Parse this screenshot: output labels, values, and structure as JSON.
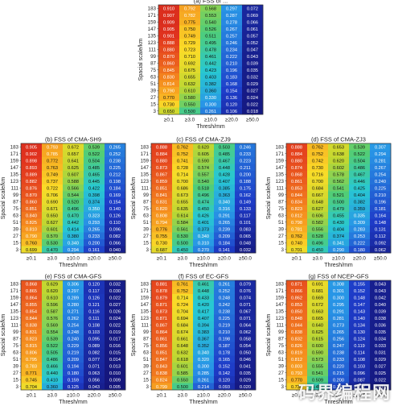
{
  "figure": {
    "watermark": "码界编程网"
  },
  "chart_data": [
    {
      "type": "heatmap",
      "title": "(a) FSS of ...",
      "xlabel": "Thresh/mm",
      "ylabel": "Spacial scale/km",
      "x": [
        "≥0.1",
        "≥3.0",
        "≥10.0",
        "≥20.0",
        "≥50.0"
      ],
      "y": [
        "183",
        "171",
        "159",
        "147",
        "135",
        "123",
        "111",
        "99",
        "87",
        "75",
        "63",
        "51",
        "39",
        "27",
        "15",
        "3"
      ],
      "values": [
        [
          0.91,
          0.792,
          0.568,
          0.297,
          0.072
        ],
        [
          0.907,
          0.782,
          0.553,
          0.287,
          0.069
        ],
        [
          0.909,
          0.775,
          0.54,
          0.278,
          0.066
        ],
        [
          0.905,
          0.75,
          0.526,
          0.267,
          0.061
        ],
        [
          0.901,
          0.749,
          0.511,
          0.257,
          0.057
        ],
        [
          0.888,
          0.729,
          0.495,
          0.246,
          0.052
        ],
        [
          0.88,
          0.723,
          0.478,
          0.234,
          0.047
        ],
        [
          0.87,
          0.71,
          0.461,
          0.222,
          0.043
        ],
        [
          0.86,
          0.692,
          0.442,
          0.21,
          0.039
        ],
        [
          0.845,
          0.675,
          0.423,
          0.196,
          0.035
        ],
        [
          0.83,
          0.655,
          0.403,
          0.183,
          0.032
        ],
        [
          0.814,
          0.632,
          0.382,
          0.168,
          0.029
        ],
        [
          0.79,
          0.61,
          0.36,
          0.154,
          0.027
        ],
        [
          0.77,
          0.58,
          0.33,
          0.136,
          0.024
        ],
        [
          0.73,
          0.55,
          0.3,
          0.12,
          0.022
        ],
        [
          0.65,
          0.5,
          0.261,
          0.106,
          0.018
        ]
      ]
    },
    {
      "type": "heatmap",
      "title": "(b) FSS of CMA-SH9",
      "xlabel": "Thresh/mm",
      "ylabel": "Spacial scale/km",
      "x": [
        "≥0.1",
        "≥3.0",
        "≥10.0",
        "≥20.0",
        "≥50.0"
      ],
      "y": [
        "183",
        "171",
        "159",
        "147",
        "135",
        "123",
        "111",
        "99",
        "87",
        "75",
        "63",
        "51",
        "39",
        "27",
        "15",
        "3"
      ],
      "values": [
        [
          0.905,
          0.793,
          0.672,
          0.539,
          0.265
        ],
        [
          0.902,
          0.785,
          0.657,
          0.522,
          0.252
        ],
        [
          0.898,
          0.772,
          0.641,
          0.504,
          0.238
        ],
        [
          0.893,
          0.763,
          0.625,
          0.485,
          0.225
        ],
        [
          0.889,
          0.749,
          0.607,
          0.465,
          0.212
        ],
        [
          0.882,
          0.737,
          0.588,
          0.445,
          0.198
        ],
        [
          0.876,
          0.722,
          0.566,
          0.422,
          0.184
        ],
        [
          0.87,
          0.706,
          0.544,
          0.398,
          0.169
        ],
        [
          0.86,
          0.69,
          0.52,
          0.374,
          0.154
        ],
        [
          0.851,
          0.671,
          0.496,
          0.35,
          0.14
        ],
        [
          0.84,
          0.65,
          0.47,
          0.323,
          0.126
        ],
        [
          0.825,
          0.627,
          0.442,
          0.293,
          0.11
        ],
        [
          0.81,
          0.601,
          0.414,
          0.265,
          0.096
        ],
        [
          0.79,
          0.57,
          0.38,
          0.233,
          0.082
        ],
        [
          0.76,
          0.53,
          0.34,
          0.2,
          0.066
        ],
        [
          0.699,
          0.47,
          0.294,
          0.161,
          0.04
        ]
      ]
    },
    {
      "type": "heatmap",
      "title": "(c) FSS of CMA-ZJ9",
      "xlabel": "Thresh/mm",
      "ylabel": "Spacial scale/km",
      "x": [
        "≥0.1",
        "≥3.0",
        "≥10.0",
        "≥20.0",
        "≥50.0"
      ],
      "y": [
        "183",
        "171",
        "159",
        "147",
        "135",
        "123",
        "111",
        "99",
        "87",
        "75",
        "63",
        "51",
        "39",
        "27",
        "15",
        "3"
      ],
      "values": [
        [
          0.888,
          0.762,
          0.62,
          0.503,
          0.246
        ],
        [
          0.884,
          0.752,
          0.605,
          0.485,
          0.233
        ],
        [
          0.88,
          0.741,
          0.59,
          0.467,
          0.223
        ],
        [
          0.873,
          0.728,
          0.574,
          0.448,
          0.211
        ],
        [
          0.867,
          0.714,
          0.557,
          0.428,
          0.2
        ],
        [
          0.859,
          0.7,
          0.54,
          0.407,
          0.188
        ],
        [
          0.851,
          0.686,
          0.518,
          0.385,
          0.175
        ],
        [
          0.841,
          0.673,
          0.496,
          0.363,
          0.162
        ],
        [
          0.831,
          0.655,
          0.474,
          0.34,
          0.149
        ],
        [
          0.82,
          0.635,
          0.45,
          0.316,
          0.133
        ],
        [
          0.808,
          0.614,
          0.426,
          0.291,
          0.117
        ],
        [
          0.794,
          0.584,
          0.401,
          0.265,
          0.101
        ],
        [
          0.776,
          0.561,
          0.373,
          0.239,
          0.083
        ],
        [
          0.755,
          0.53,
          0.34,
          0.209,
          0.065
        ],
        [
          0.73,
          0.5,
          0.31,
          0.184,
          0.048
        ],
        [
          0.687,
          0.45,
          0.27,
          0.141,
          0.032
        ]
      ]
    },
    {
      "type": "heatmap",
      "title": "(d) FSS of CMA-ZJ3",
      "xlabel": "Thresh/mm",
      "ylabel": "Spacial scale/km",
      "x": [
        "≥0.1",
        "≥3.0",
        "≥10.0",
        "≥20.0",
        "≥50.0"
      ],
      "y": [
        "183",
        "171",
        "159",
        "147",
        "135",
        "123",
        "111",
        "99",
        "87",
        "75",
        "63",
        "51",
        "39",
        "27",
        "15",
        "3"
      ],
      "values": [
        [
          0.888,
          0.762,
          0.653,
          0.539,
          0.307
        ],
        [
          0.884,
          0.752,
          0.638,
          0.522,
          0.294
        ],
        [
          0.88,
          0.742,
          0.62,
          0.504,
          0.281
        ],
        [
          0.874,
          0.73,
          0.602,
          0.486,
          0.267
        ],
        [
          0.868,
          0.716,
          0.578,
          0.467,
          0.254
        ],
        [
          0.861,
          0.7,
          0.562,
          0.446,
          0.24
        ],
        [
          0.853,
          0.684,
          0.541,
          0.425,
          0.225
        ],
        [
          0.844,
          0.667,
          0.521,
          0.404,
          0.21
        ],
        [
          0.834,
          0.648,
          0.5,
          0.382,
          0.196
        ],
        [
          0.823,
          0.627,
          0.479,
          0.359,
          0.181
        ],
        [
          0.812,
          0.606,
          0.455,
          0.335,
          0.164
        ],
        [
          0.798,
          0.582,
          0.43,
          0.309,
          0.148
        ],
        [
          0.781,
          0.556,
          0.404,
          0.283,
          0.131
        ],
        [
          0.762,
          0.528,
          0.374,
          0.253,
          0.112
        ],
        [
          0.74,
          0.496,
          0.341,
          0.222,
          0.092
        ],
        [
          0.701,
          0.45,
          0.29,
          0.18,
          0.062
        ]
      ]
    },
    {
      "type": "heatmap",
      "title": "(e) FSS of CMA-GFS",
      "xlabel": "Thresh/mm",
      "ylabel": "Spacial scale/km",
      "x": [
        "≥0.1",
        "≥3.0",
        "≥10.0",
        "≥20.0",
        "≥50.0"
      ],
      "y": [
        "183",
        "171",
        "159",
        "147",
        "135",
        "123",
        "111",
        "99",
        "87",
        "75",
        "63",
        "51",
        "39",
        "27",
        "15",
        "3"
      ],
      "values": [
        [
          0.868,
          0.629,
          0.306,
          0.12,
          0.032
        ],
        [
          0.865,
          0.62,
          0.297,
          0.117,
          0.03
        ],
        [
          0.864,
          0.61,
          0.289,
          0.126,
          0.022
        ],
        [
          0.855,
          0.596,
          0.28,
          0.121,
          0.027
        ],
        [
          0.854,
          0.587,
          0.271,
          0.116,
          0.026
        ],
        [
          0.844,
          0.576,
          0.262,
          0.111,
          0.024
        ],
        [
          0.838,
          0.569,
          0.254,
          0.108,
          0.022
        ],
        [
          0.831,
          0.554,
          0.248,
          0.103,
          0.019
        ],
        [
          0.823,
          0.539,
          0.24,
          0.095,
          0.017
        ],
        [
          0.815,
          0.522,
          0.229,
          0.089,
          0.016
        ],
        [
          0.806,
          0.505,
          0.219,
          0.082,
          0.015
        ],
        [
          0.795,
          0.486,
          0.209,
          0.077,
          0.014
        ],
        [
          0.783,
          0.466,
          0.194,
          0.071,
          0.013
        ],
        [
          0.771,
          0.44,
          0.18,
          0.063,
          0.01
        ],
        [
          0.745,
          0.41,
          0.159,
          0.056,
          0.009
        ],
        [
          0.704,
          0.36,
          0.125,
          0.043,
          0.005
        ]
      ]
    },
    {
      "type": "heatmap",
      "title": "(f) FSS of EC-GFS",
      "xlabel": "Thresh/mm",
      "ylabel": "Spacial scale/km",
      "x": [
        "≥0.1",
        "≥3.0",
        "≥10.0",
        "≥20.0",
        "≥50.0"
      ],
      "y": [
        "183",
        "171",
        "159",
        "147",
        "135",
        "123",
        "111",
        "99",
        "87",
        "75",
        "63",
        "51",
        "39",
        "27",
        "15",
        "3"
      ],
      "values": [
        [
          0.881,
          0.761,
          0.461,
          0.261,
          0.079
        ],
        [
          0.878,
          0.752,
          0.448,
          0.252,
          0.076
        ],
        [
          0.879,
          0.714,
          0.433,
          0.248,
          0.074
        ],
        [
          0.871,
          0.724,
          0.42,
          0.242,
          0.071
        ],
        [
          0.873,
          0.704,
          0.417,
          0.238,
          0.067
        ],
        [
          0.871,
          0.694,
          0.407,
          0.225,
          0.071
        ],
        [
          0.867,
          0.684,
          0.394,
          0.219,
          0.064
        ],
        [
          0.864,
          0.674,
          0.383,
          0.21,
          0.062
        ],
        [
          0.861,
          0.661,
          0.367,
          0.198,
          0.058
        ],
        [
          0.856,
          0.648,
          0.352,
          0.187,
          0.054
        ],
        [
          0.851,
          0.632,
          0.34,
          0.178,
          0.05
        ],
        [
          0.847,
          0.618,
          0.32,
          0.165,
          0.046
        ],
        [
          0.843,
          0.601,
          0.3,
          0.152,
          0.041
        ],
        [
          0.838,
          0.585,
          0.285,
          0.142,
          0.035
        ],
        [
          0.824,
          0.55,
          0.261,
          0.12,
          0.029
        ],
        [
          0.799,
          0.5,
          0.214,
          0.093,
          0.02
        ]
      ]
    },
    {
      "type": "heatmap",
      "title": "(g) FSS of NCEP-GFS",
      "xlabel": "Thresh/mm",
      "ylabel": "Spacial scale/km",
      "x": [
        "≥0.1",
        "≥3.0",
        "≥10.0",
        "≥20.0",
        "≥50.0"
      ],
      "y": [
        "183",
        "171",
        "159",
        "147",
        "135",
        "123",
        "111",
        "99",
        "87",
        "75",
        "63",
        "51",
        "39",
        "27",
        "15",
        "3"
      ],
      "values": [
        [
          0.871,
          0.691,
          0.308,
          0.155,
          0.043
        ],
        [
          0.866,
          0.681,
          0.301,
          0.152,
          0.043
        ],
        [
          0.862,
          0.669,
          0.3,
          0.148,
          0.042
        ],
        [
          0.853,
          0.672,
          0.295,
          0.147,
          0.04
        ],
        [
          0.85,
          0.663,
          0.291,
          0.143,
          0.039
        ],
        [
          0.848,
          0.665,
          0.281,
          0.14,
          0.038
        ],
        [
          0.844,
          0.64,
          0.273,
          0.134,
          0.036
        ],
        [
          0.838,
          0.625,
          0.265,
          0.13,
          0.035
        ],
        [
          0.832,
          0.615,
          0.256,
          0.124,
          0.034
        ],
        [
          0.826,
          0.6,
          0.247,
          0.119,
          0.033
        ],
        [
          0.819,
          0.59,
          0.238,
          0.114,
          0.031
        ],
        [
          0.812,
          0.573,
          0.233,
          0.108,
          0.029
        ],
        [
          0.803,
          0.555,
          0.22,
          0.103,
          0.027
        ],
        [
          0.793,
          0.541,
          0.215,
          0.096,
          0.025
        ],
        [
          0.77,
          0.509,
          0.2,
          0.087,
          0.022
        ],
        [
          0.734,
          0.456,
          0.17,
          0.072,
          0.017
        ]
      ]
    }
  ]
}
